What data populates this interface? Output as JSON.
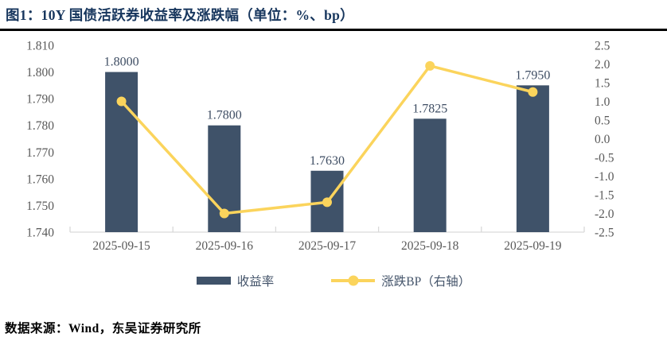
{
  "header": {
    "title": "图1：10Y 国债活跃券收益率及涨跌幅（单位：%、bp）"
  },
  "footer": {
    "source": "数据来源：Wind，东吴证券研究所"
  },
  "legend": {
    "items": [
      {
        "label": "收益率"
      },
      {
        "label": "涨跌BP（右轴）"
      }
    ]
  },
  "colors": {
    "bar": "#3F5269",
    "line": "#FBD45C",
    "title": "#17365D",
    "divider": "#000000",
    "axis_text": "#595959",
    "label_text": "#3E4D63",
    "legend_text": "#44546A",
    "axis_line": "#D9D9D9"
  },
  "chart_data": {
    "type": "combo-bar-line",
    "title": "10Y 国债活跃券收益率及涨跌幅",
    "unit": "%、bp",
    "grid": false,
    "legend_position": "bottom",
    "categories": [
      "2025-09-15",
      "2025-09-16",
      "2025-09-17",
      "2025-09-18",
      "2025-09-19"
    ],
    "series": [
      {
        "name": "收益率",
        "type": "bar",
        "axis": "left",
        "values": [
          1.8,
          1.78,
          1.763,
          1.7825,
          1.795
        ],
        "labels": [
          "1.8000",
          "1.7800",
          "1.7630",
          "1.7825",
          "1.7950"
        ]
      },
      {
        "name": "涨跌BP（右轴）",
        "type": "line",
        "axis": "right",
        "values": [
          1.0,
          -2.0,
          -1.7,
          1.95,
          1.25
        ]
      }
    ],
    "left_axis": {
      "min": 1.74,
      "max": 1.81,
      "ticks": [
        "1.810",
        "1.800",
        "1.790",
        "1.780",
        "1.770",
        "1.760",
        "1.750",
        "1.740"
      ]
    },
    "right_axis": {
      "min": -2.5,
      "max": 2.5,
      "ticks": [
        "2.5",
        "2.0",
        "1.5",
        "1.0",
        "0.5",
        "0.0",
        "-0.5",
        "-1.0",
        "-1.5",
        "-2.0",
        "-2.5"
      ]
    }
  }
}
